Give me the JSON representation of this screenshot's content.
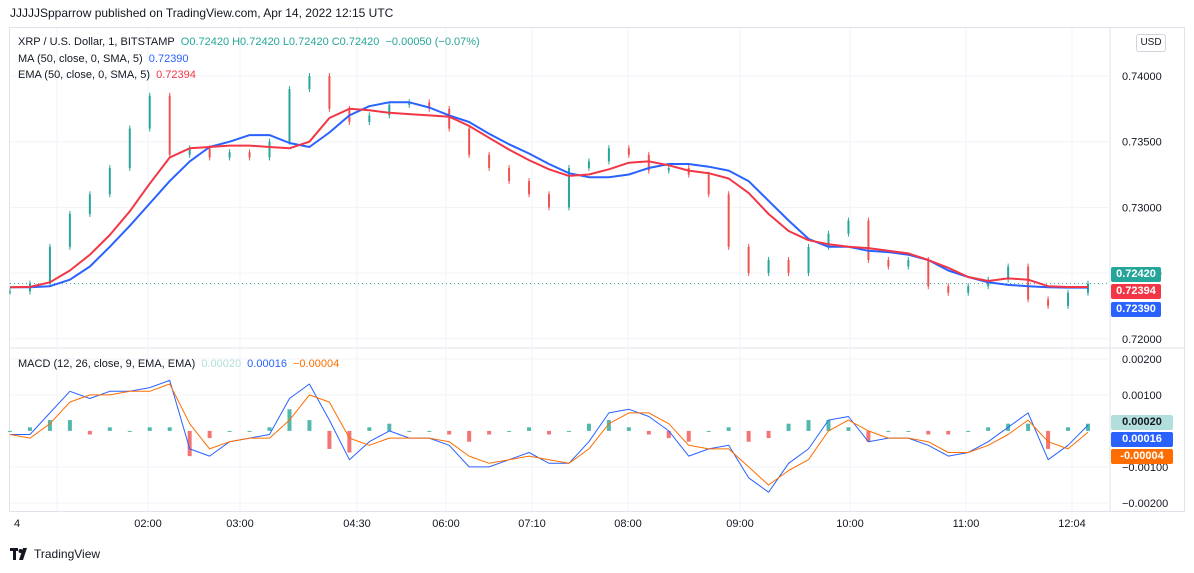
{
  "header": {
    "text": "JJJJJSpparrow published on TradingView.com, Apr 14, 2022 12:15 UTC"
  },
  "legend": {
    "symbol": "XRP / U.S. Dollar, 1, BITSTAMP",
    "o": "O0.72420",
    "h": "H0.72420",
    "l": "L0.72420",
    "c": "C0.72420",
    "change": "−0.00050 (−0.07%)",
    "ma_label": "MA (50, close, 0, SMA, 5)",
    "ma_value": "0.72390",
    "ema_label": "EMA (50, close, 0, SMA, 5)",
    "ema_value": "0.72394",
    "macd_label": "MACD (12, 26, close, 9, EMA, EMA)",
    "macd_hist": "0.00020",
    "macd_line": "0.00016",
    "macd_signal": "−0.00004"
  },
  "currency_button": "USD",
  "price_tags": {
    "close": "0.72420",
    "ema": "0.72394",
    "ma": "0.72390"
  },
  "macd_tags": {
    "hist": "0.00020",
    "macd": "0.00016",
    "signal": "-0.00004"
  },
  "footer": {
    "brand": "TradingView"
  },
  "colors": {
    "up": "#26a69a",
    "down": "#ef5350",
    "ma": "#2962ff",
    "ema": "#f23645",
    "macd": "#2962ff",
    "signal": "#ff6d00",
    "hist_up": "#26a69a",
    "hist_down": "#ef5350",
    "hist_tag": "#b2dfdb"
  },
  "chart_data": [
    {
      "type": "line",
      "title": "XRP / U.S. Dollar, 1, BITSTAMP",
      "ylim": [
        0.7193,
        0.7435
      ],
      "y_ticks": [
        0.74,
        0.735,
        0.73,
        0.725,
        0.72
      ],
      "y_tick_labels": [
        "0.74000",
        "0.73500",
        "0.73000",
        "0.72500",
        "0.72000"
      ],
      "x_tick_labels": [
        "4",
        "02:00",
        "03:00",
        "04:30",
        "06:00",
        "07:10",
        "08:00",
        "09:00",
        "10:00",
        "11:00",
        "12:04"
      ],
      "series": [
        {
          "name": "MA (50, close, 0, SMA, 5)",
          "x": [
            0,
            20,
            40,
            60,
            80,
            100,
            120,
            140,
            160,
            180,
            200,
            220,
            240,
            260,
            280,
            300,
            320,
            340,
            360,
            380,
            400,
            420,
            440,
            460,
            480,
            500,
            520,
            540,
            560,
            580,
            600,
            620,
            640,
            660,
            680,
            700,
            720,
            740,
            760,
            780,
            800,
            820,
            840,
            860,
            880,
            900,
            920,
            940,
            960,
            980,
            1000,
            1020,
            1040,
            1060,
            1080
          ],
          "values": [
            0.72392,
            0.72392,
            0.724,
            0.7245,
            0.7255,
            0.727,
            0.7286,
            0.7303,
            0.732,
            0.7335,
            0.7346,
            0.735,
            0.7355,
            0.7355,
            0.7349,
            0.7346,
            0.7357,
            0.737,
            0.7377,
            0.738,
            0.738,
            0.7376,
            0.737,
            0.7365,
            0.7356,
            0.7348,
            0.7341,
            0.7333,
            0.7326,
            0.7323,
            0.7323,
            0.7325,
            0.733,
            0.7333,
            0.7333,
            0.7331,
            0.7328,
            0.732,
            0.7305,
            0.729,
            0.7276,
            0.727,
            0.727,
            0.7267,
            0.7266,
            0.7264,
            0.726,
            0.7252,
            0.7247,
            0.7243,
            0.7241,
            0.724,
            0.72392,
            0.7239,
            0.7239
          ]
        },
        {
          "name": "EMA (50, close, 0, SMA, 5)",
          "x": [
            0,
            20,
            40,
            60,
            80,
            100,
            120,
            140,
            160,
            180,
            200,
            220,
            240,
            260,
            280,
            300,
            320,
            340,
            360,
            380,
            400,
            420,
            440,
            460,
            480,
            500,
            520,
            540,
            560,
            580,
            600,
            620,
            640,
            660,
            680,
            700,
            720,
            740,
            760,
            780,
            800,
            820,
            840,
            860,
            880,
            900,
            920,
            940,
            960,
            980,
            1000,
            1020,
            1040,
            1060,
            1080
          ],
          "values": [
            0.72392,
            0.72395,
            0.7243,
            0.7252,
            0.7264,
            0.7279,
            0.7297,
            0.7318,
            0.7338,
            0.7345,
            0.7346,
            0.7347,
            0.7347,
            0.7346,
            0.7345,
            0.735,
            0.7368,
            0.7375,
            0.7374,
            0.7372,
            0.7371,
            0.737,
            0.7369,
            0.7362,
            0.7353,
            0.7344,
            0.7336,
            0.7329,
            0.7324,
            0.7325,
            0.7329,
            0.7334,
            0.7335,
            0.7332,
            0.7328,
            0.7326,
            0.7322,
            0.7311,
            0.7295,
            0.7282,
            0.7275,
            0.7272,
            0.727,
            0.7269,
            0.7267,
            0.7265,
            0.726,
            0.7254,
            0.7247,
            0.7244,
            0.7246,
            0.7245,
            0.724,
            0.72394,
            0.72394
          ]
        },
        {
          "name": "Close",
          "x": [
            0,
            20,
            40,
            60,
            80,
            100,
            120,
            140,
            160,
            180,
            200,
            220,
            240,
            260,
            280,
            300,
            320,
            340,
            360,
            380,
            400,
            420,
            440,
            460,
            480,
            500,
            520,
            540,
            560,
            580,
            600,
            620,
            640,
            660,
            680,
            700,
            720,
            740,
            760,
            780,
            800,
            820,
            840,
            860,
            880,
            900,
            920,
            940,
            960,
            980,
            1000,
            1020,
            1040,
            1060,
            1080
          ],
          "values": [
            0.7236,
            0.7242,
            0.727,
            0.7295,
            0.731,
            0.733,
            0.736,
            0.7385,
            0.734,
            0.7345,
            0.7338,
            0.7342,
            0.7338,
            0.735,
            0.739,
            0.74,
            0.7375,
            0.7365,
            0.737,
            0.7378,
            0.738,
            0.7375,
            0.736,
            0.734,
            0.733,
            0.732,
            0.731,
            0.73,
            0.733,
            0.7335,
            0.7345,
            0.734,
            0.7328,
            0.733,
            0.7325,
            0.731,
            0.727,
            0.725,
            0.726,
            0.725,
            0.727,
            0.728,
            0.729,
            0.726,
            0.7255,
            0.726,
            0.724,
            0.7235,
            0.724,
            0.7245,
            0.7255,
            0.723,
            0.7225,
            0.7235,
            0.7242
          ]
        }
      ],
      "last_price": 0.7242
    },
    {
      "type": "line",
      "title": "MACD (12, 26, close, 9, EMA, EMA)",
      "ylim": [
        -0.00225,
        0.0023
      ],
      "y_ticks": [
        0.002,
        0.001,
        -0.001,
        -0.002
      ],
      "y_tick_labels": [
        "0.00200",
        "0.00100",
        "−0.00100",
        "−0.00200"
      ],
      "series": [
        {
          "name": "MACD",
          "x": [
            0,
            20,
            40,
            60,
            80,
            100,
            120,
            140,
            160,
            180,
            200,
            220,
            240,
            260,
            280,
            300,
            320,
            340,
            360,
            380,
            400,
            420,
            440,
            460,
            480,
            500,
            520,
            540,
            560,
            580,
            600,
            620,
            640,
            660,
            680,
            700,
            720,
            740,
            760,
            780,
            800,
            820,
            840,
            860,
            880,
            900,
            920,
            940,
            960,
            980,
            1000,
            1020,
            1040,
            1060,
            1080
          ],
          "values": [
            -0.0001,
            -0.0001,
            0.0005,
            0.0011,
            0.0009,
            0.0011,
            0.0011,
            0.0012,
            0.0014,
            -0.0005,
            -0.0007,
            -0.0003,
            -0.0002,
            -0.0001,
            0.0009,
            0.0013,
            0.0003,
            -0.0008,
            -0.0003,
            0.0,
            -0.0002,
            -0.0002,
            -0.0004,
            -0.001,
            -0.001,
            -0.0008,
            -0.0006,
            -0.0009,
            -0.0009,
            -0.0003,
            0.0005,
            0.0006,
            0.0004,
            0.0,
            -0.0007,
            -0.0005,
            -0.0004,
            -0.0013,
            -0.0017,
            -0.0009,
            -0.0005,
            0.0003,
            0.0004,
            -0.0003,
            -0.0002,
            -0.0002,
            -0.0004,
            -0.0007,
            -0.0006,
            -0.0003,
            0.0001,
            0.0005,
            -0.0008,
            -0.0004,
            0.00016
          ]
        },
        {
          "name": "Signal",
          "x": [
            0,
            20,
            40,
            60,
            80,
            100,
            120,
            140,
            160,
            180,
            200,
            220,
            240,
            260,
            280,
            300,
            320,
            340,
            360,
            380,
            400,
            420,
            440,
            460,
            480,
            500,
            520,
            540,
            560,
            580,
            600,
            620,
            640,
            660,
            680,
            700,
            720,
            740,
            760,
            780,
            800,
            820,
            840,
            860,
            880,
            900,
            920,
            940,
            960,
            980,
            1000,
            1020,
            1040,
            1060,
            1080
          ],
          "values": [
            -0.0001,
            -0.0002,
            0.0002,
            0.0008,
            0.001,
            0.001,
            0.0011,
            0.0011,
            0.0013,
            0.0002,
            -0.0005,
            -0.0003,
            -0.0002,
            -0.0002,
            0.0003,
            0.001,
            0.0008,
            -0.0002,
            -0.0004,
            -0.0002,
            -0.0002,
            -0.0002,
            -0.0003,
            -0.0007,
            -0.0009,
            -0.0008,
            -0.0007,
            -0.0008,
            -0.0009,
            -0.0005,
            0.0002,
            0.0005,
            0.0005,
            0.0002,
            -0.0004,
            -0.0005,
            -0.0005,
            -0.001,
            -0.0015,
            -0.0011,
            -0.0008,
            0.0,
            0.0003,
            0.0,
            -0.0002,
            -0.0002,
            -0.0003,
            -0.0006,
            -0.0006,
            -0.0004,
            -0.0001,
            0.0003,
            -0.0003,
            -0.0005,
            -4e-05
          ]
        }
      ],
      "histogram_values": [
        0.0,
        0.0001,
        0.0003,
        0.0003,
        -0.0001,
        0.0001,
        0.0,
        0.0001,
        0.0001,
        -0.0007,
        -0.0002,
        0.0,
        0.0,
        0.0001,
        0.0006,
        0.0003,
        -0.0005,
        -0.0006,
        0.0001,
        0.0002,
        0.0,
        0.0,
        -0.0001,
        -0.0003,
        -0.0001,
        0.0,
        0.0001,
        -0.0001,
        0.0,
        0.0002,
        0.0003,
        0.0001,
        -0.0001,
        -0.0002,
        -0.0003,
        0.0,
        0.0001,
        -0.0003,
        -0.0002,
        0.0002,
        0.0003,
        0.0003,
        0.0001,
        -0.0003,
        0.0,
        0.0,
        -0.0001,
        -0.0001,
        0.0,
        0.0001,
        0.0002,
        0.0002,
        -0.0005,
        0.0001,
        0.0002
      ]
    }
  ]
}
